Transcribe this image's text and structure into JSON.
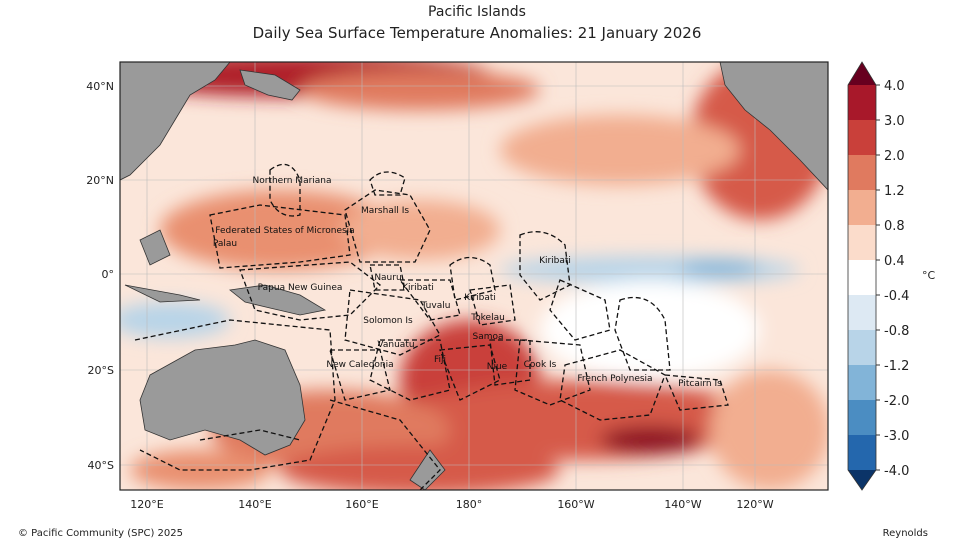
{
  "header": {
    "title": "Pacific Islands",
    "subtitle": "Daily Sea Surface Temperature Anomalies: 21 January 2026"
  },
  "map": {
    "lat_labels": [
      "40°N",
      "20°N",
      "0°",
      "20°S",
      "40°S"
    ],
    "lon_labels": [
      "120°E",
      "140°E",
      "160°E",
      "180°",
      "160°W",
      "140°W",
      "120°W"
    ],
    "regions": [
      "Northern Mariana",
      "Federated States of Micronesia",
      "Palau",
      "Marshall Is",
      "Nauru",
      "Kiribati",
      "Papua New Guinea",
      "Tuvalu",
      "Kiribati",
      "Kiribati",
      "Tokelau",
      "Solomon Is",
      "Vanuatu",
      "Samoa",
      "New Caledonia",
      "Fiji",
      "Niue",
      "Cook Is",
      "French Polynesia",
      "Pitcairn Is"
    ]
  },
  "colorbar": {
    "unit": "°C",
    "ticks": [
      {
        "value": 4,
        "label": "4.0"
      },
      {
        "value": 3,
        "label": "3.0"
      },
      {
        "value": 2,
        "label": "2.0"
      },
      1.2,
      0.8,
      0.4,
      -0.4,
      -0.8,
      -1.2,
      {
        "value": -2,
        "label": "-2.0"
      },
      {
        "value": -3,
        "label": "-3.0"
      },
      {
        "value": -4,
        "label": "-4.0"
      }
    ],
    "colors": [
      "#67001f",
      "#a8182a",
      "#c9403a",
      "#e07a5f",
      "#f2ae90",
      "#fbdccb",
      "#ffffff",
      "#dde9f3",
      "#b8d4e8",
      "#82b4d8",
      "#4b8dc2",
      "#2467ad",
      "#0b3468"
    ]
  },
  "footer": {
    "credit": "© Pacific Community (SPC) 2025",
    "source": "Reynolds"
  }
}
